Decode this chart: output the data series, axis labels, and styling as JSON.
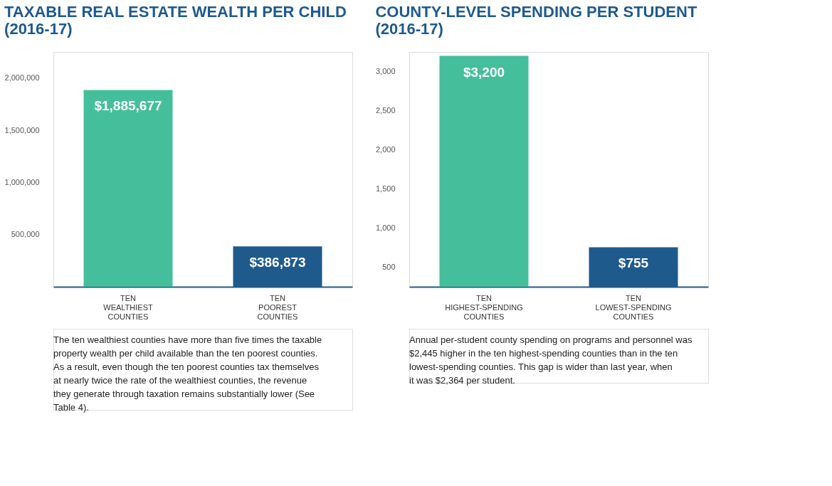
{
  "chart_data": [
    {
      "type": "bar",
      "title": "TAXABLE REAL ESTATE WEALTH PER CHILD (2016-17)",
      "categories": [
        "TEN WEALTHIEST COUNTIES",
        "TEN POOREST COUNTIES"
      ],
      "values": [
        1885677,
        386873
      ],
      "colors": [
        "#45bf9b",
        "#1f5a8c"
      ],
      "ylim": [
        0,
        2250000
      ],
      "yticks": [
        {
          "value": 500000,
          "label": "500,000"
        },
        {
          "value": 1000000,
          "label": "1,000,000"
        },
        {
          "value": 1500000,
          "label": "1,500,000"
        },
        {
          "value": 2000000,
          "label": "2,000,000"
        }
      ],
      "value_labels": [
        "$1,885,677",
        "$386,873"
      ],
      "grid": false,
      "legend": false,
      "annotations": [
        "The ten wealthiest counties have more than five times the taxable property wealth per child available than the ten poorest counties. As a result, even though the ten poorest counties tax themselves at nearly twice the rate of the wealthiest counties, the revenue they generate through taxation remains substantially lower (See Table 4)."
      ]
    },
    {
      "type": "bar",
      "title": "COUNTY-LEVEL SPENDING PER STUDENT (2016-17)",
      "categories": [
        "TEN HIGHEST-SPENDING COUNTIES",
        "TEN LOWEST-SPENDING COUNTIES"
      ],
      "values": [
        3200,
        755
      ],
      "colors": [
        "#45bf9b",
        "#1f5a8c"
      ],
      "ylim": [
        250,
        3250
      ],
      "yticks": [
        500,
        {
          "value": 1000,
          "label": "1,000"
        },
        {
          "value": 1500,
          "label": "1,500"
        },
        {
          "value": 2000,
          "label": "2,000"
        },
        {
          "value": 2500,
          "label": "2,500"
        },
        {
          "value": 3000,
          "label": "3,000"
        }
      ],
      "value_labels": [
        "$3,200",
        "$755"
      ],
      "grid": false,
      "legend": false,
      "annotations": [
        "Annual per-student county spending on programs and personnel was $2,445 higher in the ten highest-spending counties than in the ten lowest-spending counties. This gap is wider than last year, when it was $2,364 per student."
      ]
    }
  ]
}
